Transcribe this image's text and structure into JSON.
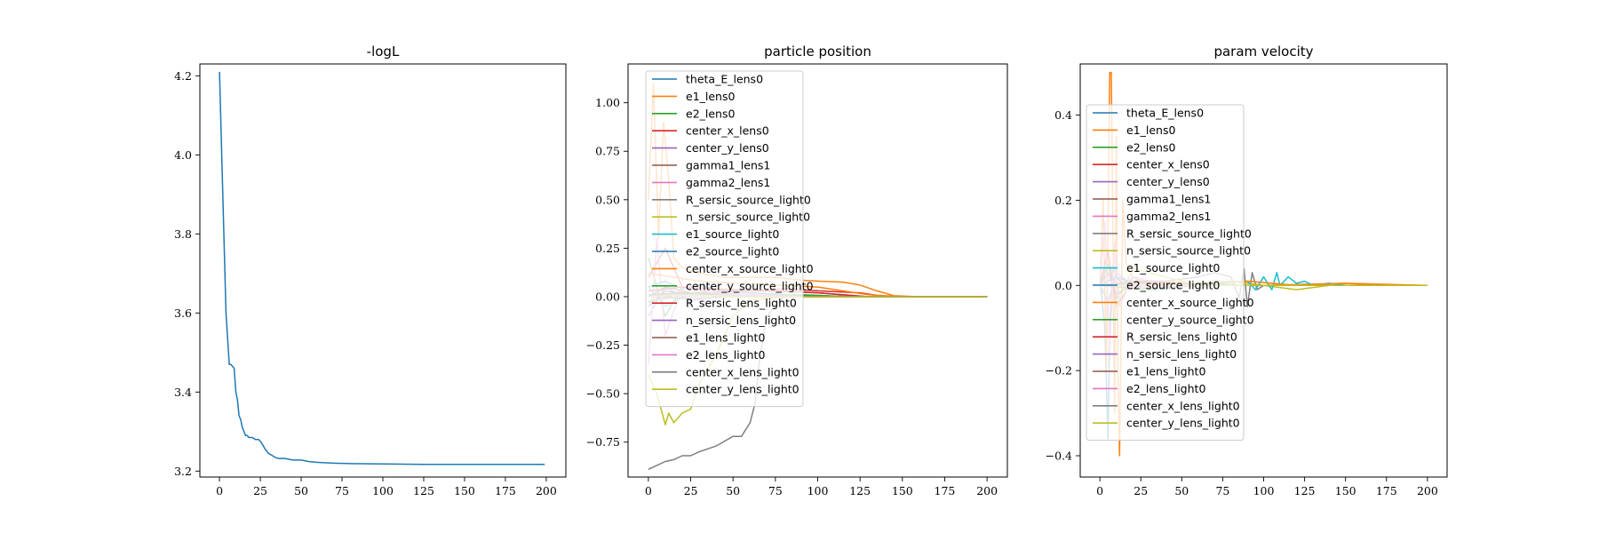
{
  "chart_data": [
    {
      "type": "line",
      "title": "-logL",
      "xlabel": "",
      "ylabel": "",
      "xlim": [
        -12,
        212
      ],
      "ylim": [
        3.185,
        4.23
      ],
      "xticks": [
        0,
        25,
        50,
        75,
        100,
        125,
        150,
        175,
        200
      ],
      "xtick_labels": [
        "0",
        "25",
        "50",
        "75",
        "100",
        "125",
        "150",
        "175",
        "200"
      ],
      "yticks": [
        3.2,
        3.4,
        3.6,
        3.8,
        4.0,
        4.2
      ],
      "ytick_labels": [
        "3.2",
        "3.4",
        "3.6",
        "3.8",
        "4.0",
        "4.2"
      ],
      "legend": "none",
      "grid": false,
      "series": [
        {
          "color": "#1f77b4",
          "x": [
            0,
            2,
            4,
            6,
            7,
            9,
            10,
            11,
            12,
            13,
            14,
            15,
            16,
            17,
            18,
            20,
            22,
            24,
            26,
            28,
            30,
            32,
            34,
            36,
            40,
            45,
            50,
            55,
            60,
            70,
            80,
            100,
            125,
            150,
            175,
            199
          ],
          "y": [
            4.21,
            3.9,
            3.6,
            3.47,
            3.47,
            3.46,
            3.4,
            3.38,
            3.34,
            3.33,
            3.31,
            3.3,
            3.29,
            3.29,
            3.285,
            3.285,
            3.28,
            3.28,
            3.27,
            3.255,
            3.245,
            3.24,
            3.235,
            3.232,
            3.232,
            3.228,
            3.228,
            3.224,
            3.222,
            3.22,
            3.219,
            3.218,
            3.217,
            3.217,
            3.217,
            3.217
          ]
        }
      ]
    },
    {
      "type": "line",
      "title": "particle position",
      "xlabel": "",
      "ylabel": "",
      "xlim": [
        -12,
        212
      ],
      "ylim": [
        -0.93,
        1.2
      ],
      "xticks": [
        0,
        25,
        50,
        75,
        100,
        125,
        150,
        175,
        200
      ],
      "xtick_labels": [
        "0",
        "25",
        "50",
        "75",
        "100",
        "125",
        "150",
        "175",
        "200"
      ],
      "yticks": [
        -0.75,
        -0.5,
        -0.25,
        0.0,
        0.25,
        0.5,
        0.75,
        1.0
      ],
      "ytick_labels": [
        "−0.75",
        "−0.50",
        "−0.25",
        "0.00",
        "0.25",
        "0.50",
        "0.75",
        "1.00"
      ],
      "legend": "upper left",
      "grid": false,
      "series": [
        {
          "name": "theta_E_lens0",
          "color": "#1f77b4",
          "x": [
            0,
            10,
            20,
            30,
            45,
            60,
            80,
            100,
            125,
            150,
            200
          ],
          "y": [
            0.05,
            0.08,
            0.04,
            0.06,
            0.03,
            0.02,
            0.01,
            0.005,
            0.0,
            0.0,
            0.0
          ]
        },
        {
          "name": "e1_lens0",
          "color": "#ff7f0e",
          "x": [
            0,
            3,
            6,
            9,
            12,
            15,
            20,
            30,
            45,
            60,
            75,
            90,
            100,
            115,
            125,
            135,
            145,
            160,
            180,
            200
          ],
          "y": [
            0.5,
            1.1,
            0.3,
            0.9,
            0.6,
            0.2,
            0.15,
            0.12,
            0.1,
            0.1,
            0.1,
            0.085,
            0.08,
            0.075,
            0.06,
            0.03,
            0.005,
            0.0,
            0.0,
            0.0
          ]
        },
        {
          "name": "e2_lens0",
          "color": "#2ca02c",
          "x": [
            0,
            10,
            20,
            40,
            60,
            90,
            120,
            200
          ],
          "y": [
            0.2,
            -0.1,
            0.05,
            0.02,
            0.0,
            0.01,
            0.0,
            0.0
          ]
        },
        {
          "name": "center_x_lens0",
          "color": "#d62728",
          "x": [
            0,
            10,
            20,
            40,
            60,
            80,
            100,
            125,
            140,
            200
          ],
          "y": [
            0.1,
            0.25,
            0.05,
            0.04,
            0.03,
            0.04,
            0.03,
            0.02,
            0.0,
            0.0
          ]
        },
        {
          "name": "center_y_lens0",
          "color": "#9467bd",
          "x": [
            0,
            10,
            25,
            50,
            75,
            100,
            200
          ],
          "y": [
            -0.1,
            0.05,
            -0.02,
            0.01,
            0.0,
            0.0,
            0.0
          ]
        },
        {
          "name": "gamma1_lens1",
          "color": "#8c564b",
          "x": [
            0,
            10,
            25,
            50,
            75,
            100,
            130,
            200
          ],
          "y": [
            0.0,
            0.05,
            0.02,
            0.03,
            0.03,
            0.02,
            0.0,
            0.0
          ]
        },
        {
          "name": "gamma2_lens1",
          "color": "#e377c2",
          "x": [
            0,
            5,
            10,
            20,
            40,
            60,
            90,
            200
          ],
          "y": [
            -0.35,
            0.3,
            -0.2,
            0.05,
            0.02,
            0.01,
            0.0,
            0.0
          ]
        },
        {
          "name": "R_sersic_source_light0",
          "color": "#7f7f7f",
          "x": [
            0,
            5,
            10,
            15,
            20,
            25,
            30,
            40,
            50,
            55,
            60,
            63,
            66,
            70,
            80,
            100,
            200
          ],
          "y": [
            -0.89,
            -0.87,
            -0.85,
            -0.84,
            -0.82,
            -0.82,
            -0.8,
            -0.77,
            -0.72,
            -0.72,
            -0.65,
            -0.55,
            -0.3,
            -0.1,
            0.0,
            0.0,
            0.0
          ]
        },
        {
          "name": "n_sersic_source_light0",
          "color": "#bcbd22",
          "x": [
            0,
            5,
            10,
            12,
            15,
            20,
            25,
            30,
            40,
            50,
            60,
            80,
            200
          ],
          "y": [
            -0.4,
            -0.5,
            -0.66,
            -0.6,
            -0.65,
            -0.6,
            -0.58,
            -0.45,
            -0.3,
            -0.1,
            -0.02,
            0.0,
            0.0
          ]
        },
        {
          "name": "e1_source_light0",
          "color": "#17becf",
          "x": [
            0,
            10,
            25,
            50,
            80,
            120,
            200
          ],
          "y": [
            0.05,
            -0.05,
            0.02,
            0.01,
            0.0,
            0.0,
            0.0
          ]
        },
        {
          "name": "e2_source_light0",
          "color": "#1f77b4",
          "x": [
            0,
            10,
            25,
            50,
            80,
            200
          ],
          "y": [
            -0.05,
            0.03,
            0.01,
            0.0,
            0.0,
            0.0
          ]
        },
        {
          "name": "center_x_source_light0",
          "color": "#ff7f0e",
          "x": [
            0,
            15,
            30,
            50,
            75,
            100,
            130,
            150,
            200
          ],
          "y": [
            0.12,
            0.1,
            0.08,
            0.07,
            0.06,
            0.05,
            0.01,
            0.0,
            0.0
          ]
        },
        {
          "name": "center_y_source_light0",
          "color": "#2ca02c",
          "x": [
            0,
            20,
            40,
            70,
            100,
            200
          ],
          "y": [
            -0.03,
            0.02,
            0.01,
            0.0,
            0.0,
            0.0
          ]
        },
        {
          "name": "R_sersic_lens_light0",
          "color": "#d62728",
          "x": [
            0,
            20,
            40,
            70,
            100,
            130,
            200
          ],
          "y": [
            0.03,
            0.05,
            0.04,
            0.03,
            0.02,
            0.0,
            0.0
          ]
        },
        {
          "name": "n_sersic_lens_light0",
          "color": "#9467bd",
          "x": [
            0,
            20,
            50,
            80,
            200
          ],
          "y": [
            0.0,
            0.02,
            0.01,
            0.0,
            0.0
          ]
        },
        {
          "name": "e1_lens_light0",
          "color": "#8c564b",
          "x": [
            0,
            20,
            50,
            80,
            200
          ],
          "y": [
            0.01,
            0.02,
            0.01,
            0.0,
            0.0
          ]
        },
        {
          "name": "e2_lens_light0",
          "color": "#e377c2",
          "x": [
            0,
            20,
            50,
            80,
            200
          ],
          "y": [
            -0.02,
            0.0,
            0.01,
            0.0,
            0.0
          ]
        },
        {
          "name": "center_x_lens_light0",
          "color": "#7f7f7f",
          "x": [
            0,
            20,
            50,
            80,
            200
          ],
          "y": [
            0.01,
            -0.01,
            0.0,
            0.0,
            0.0
          ]
        },
        {
          "name": "center_y_lens_light0",
          "color": "#bcbd22",
          "x": [
            0,
            20,
            50,
            80,
            200
          ],
          "y": [
            0.0,
            0.01,
            0.0,
            0.0,
            0.0
          ]
        }
      ]
    },
    {
      "type": "line",
      "title": "param velocity",
      "xlabel": "",
      "ylabel": "",
      "xlim": [
        -12,
        212
      ],
      "ylim": [
        -0.45,
        0.52
      ],
      "xticks": [
        0,
        25,
        50,
        75,
        100,
        125,
        150,
        175,
        200
      ],
      "xtick_labels": [
        "0",
        "25",
        "50",
        "75",
        "100",
        "125",
        "150",
        "175",
        "200"
      ],
      "yticks": [
        -0.4,
        -0.2,
        0.0,
        0.2,
        0.4
      ],
      "ytick_labels": [
        "−0.4",
        "−0.2",
        "0.0",
        "0.2",
        "0.4"
      ],
      "legend": "center left",
      "grid": false,
      "series": [
        {
          "name": "theta_E_lens0",
          "color": "#1f77b4",
          "x": [
            0,
            3,
            5,
            6,
            8,
            10,
            15,
            30,
            60,
            100,
            200
          ],
          "y": [
            0.02,
            -0.1,
            -0.36,
            -0.1,
            0.05,
            0.02,
            0.0,
            0.01,
            0.0,
            0.0,
            0.0
          ]
        },
        {
          "name": "e1_lens0",
          "color": "#ff7f0e",
          "x": [
            0,
            2,
            4,
            6,
            7,
            8,
            9,
            10,
            11,
            12,
            14,
            16,
            20,
            30,
            60,
            100,
            150,
            200
          ],
          "y": [
            0.0,
            0.2,
            -0.2,
            0.5,
            0.5,
            0.1,
            -0.3,
            0.35,
            -0.2,
            -0.4,
            0.2,
            0.05,
            0.02,
            0.0,
            0.0,
            0.0,
            0.005,
            0.0
          ]
        },
        {
          "name": "e2_lens0",
          "color": "#2ca02c",
          "x": [
            0,
            5,
            10,
            20,
            40,
            60,
            200
          ],
          "y": [
            0.0,
            0.05,
            -0.03,
            0.02,
            0.0,
            0.0,
            0.0
          ]
        },
        {
          "name": "center_x_lens0",
          "color": "#d62728",
          "x": [
            0,
            5,
            10,
            20,
            40,
            200
          ],
          "y": [
            0.0,
            0.08,
            -0.05,
            0.01,
            0.0,
            0.0
          ]
        },
        {
          "name": "center_y_lens0",
          "color": "#9467bd",
          "x": [
            0,
            5,
            10,
            20,
            40,
            200
          ],
          "y": [
            0.0,
            -0.04,
            0.03,
            0.0,
            0.0,
            0.0
          ]
        },
        {
          "name": "gamma1_lens1",
          "color": "#8c564b",
          "x": [
            0,
            5,
            10,
            20,
            40,
            200
          ],
          "y": [
            0.0,
            0.03,
            -0.02,
            0.0,
            0.0,
            0.0
          ]
        },
        {
          "name": "gamma2_lens1",
          "color": "#e377c2",
          "x": [
            0,
            3,
            6,
            9,
            12,
            20,
            40,
            200
          ],
          "y": [
            0.0,
            0.15,
            -0.15,
            0.1,
            -0.05,
            0.02,
            0.0,
            0.0
          ]
        },
        {
          "name": "R_sersic_source_light0",
          "color": "#7f7f7f",
          "x": [
            0,
            20,
            40,
            60,
            70,
            80,
            85,
            88,
            90,
            93,
            96,
            100,
            120,
            200
          ],
          "y": [
            0.0,
            0.01,
            0.01,
            0.02,
            0.03,
            0.02,
            -0.03,
            0.04,
            -0.05,
            0.03,
            -0.01,
            0.0,
            0.0,
            0.0
          ]
        },
        {
          "name": "n_sersic_source_light0",
          "color": "#bcbd22",
          "x": [
            0,
            10,
            20,
            40,
            60,
            80,
            100,
            120,
            140,
            200
          ],
          "y": [
            0.0,
            -0.05,
            0.04,
            0.02,
            0.0,
            0.01,
            0.0,
            -0.01,
            0.0,
            0.0
          ]
        },
        {
          "name": "e1_source_light0",
          "color": "#17becf",
          "x": [
            0,
            20,
            60,
            90,
            95,
            100,
            105,
            108,
            110,
            115,
            120,
            125,
            130,
            140,
            150,
            160,
            200
          ],
          "y": [
            0.0,
            0.0,
            0.0,
            0.01,
            -0.01,
            0.02,
            -0.01,
            0.03,
            0.0,
            0.02,
            0.005,
            0.01,
            0.0,
            0.005,
            0.0,
            0.0,
            0.0
          ]
        },
        {
          "name": "e2_source_light0",
          "color": "#1f77b4",
          "x": [
            0,
            10,
            30,
            60,
            200
          ],
          "y": [
            0.0,
            0.02,
            -0.01,
            0.0,
            0.0
          ]
        },
        {
          "name": "center_x_source_light0",
          "color": "#ff7f0e",
          "x": [
            0,
            30,
            60,
            90,
            120,
            150,
            170,
            200
          ],
          "y": [
            0.0,
            0.01,
            0.005,
            0.01,
            0.0,
            0.005,
            0.0,
            0.0
          ]
        },
        {
          "name": "center_y_source_light0",
          "color": "#2ca02c",
          "x": [
            0,
            30,
            60,
            90,
            200
          ],
          "y": [
            0.0,
            -0.01,
            0.005,
            0.0,
            0.0
          ]
        },
        {
          "name": "R_sersic_lens_light0",
          "color": "#d62728",
          "x": [
            0,
            30,
            60,
            90,
            200
          ],
          "y": [
            0.0,
            0.01,
            0.0,
            0.0,
            0.0
          ]
        },
        {
          "name": "n_sersic_lens_light0",
          "color": "#9467bd",
          "x": [
            0,
            30,
            60,
            200
          ],
          "y": [
            0.0,
            -0.005,
            0.0,
            0.0
          ]
        },
        {
          "name": "e1_lens_light0",
          "color": "#8c564b",
          "x": [
            0,
            30,
            60,
            200
          ],
          "y": [
            0.0,
            0.005,
            0.0,
            0.0
          ]
        },
        {
          "name": "e2_lens_light0",
          "color": "#e377c2",
          "x": [
            0,
            30,
            60,
            200
          ],
          "y": [
            0.0,
            -0.005,
            0.0,
            0.0
          ]
        },
        {
          "name": "center_x_lens_light0",
          "color": "#7f7f7f",
          "x": [
            0,
            30,
            60,
            200
          ],
          "y": [
            0.0,
            0.005,
            0.0,
            0.0
          ]
        },
        {
          "name": "center_y_lens_light0",
          "color": "#bcbd22",
          "x": [
            0,
            30,
            60,
            200
          ],
          "y": [
            0.0,
            0.0,
            0.0,
            0.0
          ]
        }
      ]
    }
  ]
}
